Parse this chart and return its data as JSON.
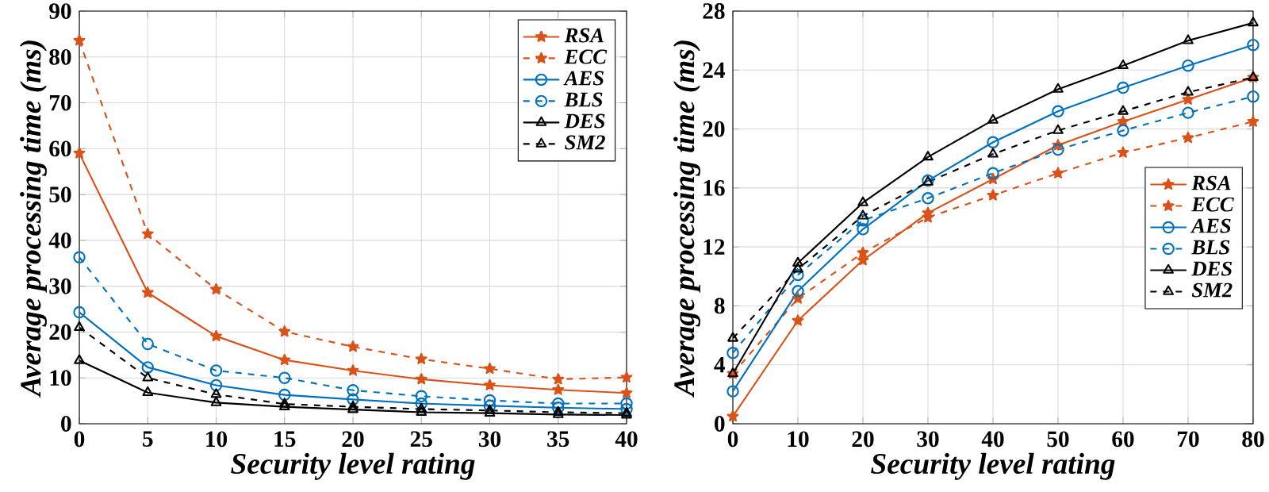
{
  "chart_data": [
    {
      "type": "line",
      "xlabel": "Security level rating",
      "ylabel": "Average processing time (ms)",
      "x": [
        0,
        5,
        10,
        15,
        20,
        25,
        30,
        35,
        40
      ],
      "xlim": [
        0,
        40
      ],
      "ylim": [
        0,
        90
      ],
      "xticks": [
        0,
        5,
        10,
        15,
        20,
        25,
        30,
        35,
        40
      ],
      "yticks": [
        0,
        10,
        20,
        30,
        40,
        50,
        60,
        70,
        80,
        90
      ],
      "grid": true,
      "legend": "top right",
      "series": [
        {
          "name": "RSA",
          "color": "#d95319",
          "marker": "star",
          "line_style": "solid",
          "values": [
            59,
            28.6,
            19.1,
            13.9,
            11.6,
            9.7,
            8.4,
            7.4,
            6.7
          ]
        },
        {
          "name": "ECC",
          "color": "#d95319",
          "marker": "star",
          "line_style": "dashed",
          "values": [
            83.6,
            41.4,
            29.3,
            20.1,
            16.8,
            14.1,
            12,
            9.7,
            10.1
          ]
        },
        {
          "name": "AES",
          "color": "#0072bd",
          "marker": "circle",
          "line_style": "solid",
          "values": [
            24.3,
            12.3,
            8.4,
            6.3,
            5.3,
            4.4,
            3.9,
            3.5,
            3.2
          ]
        },
        {
          "name": "BLS",
          "color": "#0072bd",
          "marker": "circle",
          "line_style": "dashed",
          "values": [
            36.3,
            17.4,
            11.6,
            10,
            7.3,
            6,
            5.1,
            4.4,
            4.4
          ]
        },
        {
          "name": "DES",
          "color": "#000000",
          "marker": "triangle",
          "line_style": "solid",
          "values": [
            13.8,
            6.8,
            4.6,
            3.7,
            3.1,
            2.5,
            2.3,
            2,
            1.9
          ]
        },
        {
          "name": "SM2",
          "color": "#000000",
          "marker": "triangle",
          "line_style": "dashed",
          "values": [
            21,
            10,
            6.4,
            4.3,
            3.7,
            3.2,
            2.9,
            2.5,
            2.3
          ]
        }
      ]
    },
    {
      "type": "line",
      "xlabel": "Security level rating",
      "ylabel": "Average processing time (ms)",
      "x": [
        0,
        10,
        20,
        30,
        40,
        50,
        60,
        70,
        80
      ],
      "xlim": [
        0,
        80
      ],
      "ylim": [
        0,
        28
      ],
      "xticks": [
        0,
        10,
        20,
        30,
        40,
        50,
        60,
        70,
        80
      ],
      "yticks": [
        0,
        4,
        8,
        12,
        16,
        20,
        24,
        28
      ],
      "grid": true,
      "legend": "right",
      "series": [
        {
          "name": "RSA",
          "color": "#d95319",
          "marker": "star",
          "line_style": "solid",
          "values": [
            0.5,
            7,
            11.1,
            14.3,
            16.6,
            18.9,
            20.5,
            22,
            23.5
          ]
        },
        {
          "name": "ECC",
          "color": "#d95319",
          "marker": "star",
          "line_style": "dashed",
          "values": [
            3.4,
            8.5,
            11.6,
            14,
            15.5,
            17,
            18.4,
            19.4,
            20.5
          ]
        },
        {
          "name": "AES",
          "color": "#0072bd",
          "marker": "circle",
          "line_style": "solid",
          "values": [
            2.2,
            9,
            13.2,
            16.5,
            19.1,
            21.2,
            22.8,
            24.3,
            25.7
          ]
        },
        {
          "name": "BLS",
          "color": "#0072bd",
          "marker": "circle",
          "line_style": "dashed",
          "values": [
            4.8,
            10.1,
            13.8,
            15.3,
            17,
            18.6,
            19.9,
            21.1,
            22.2
          ]
        },
        {
          "name": "DES",
          "color": "#000000",
          "marker": "triangle",
          "line_style": "solid",
          "values": [
            3.4,
            10.9,
            15,
            18.1,
            20.6,
            22.7,
            24.3,
            26,
            27.2
          ]
        },
        {
          "name": "SM2",
          "color": "#000000",
          "marker": "triangle",
          "line_style": "dashed",
          "values": [
            5.8,
            10.5,
            14.1,
            16.4,
            18.3,
            19.9,
            21.2,
            22.5,
            23.5
          ]
        }
      ]
    }
  ]
}
